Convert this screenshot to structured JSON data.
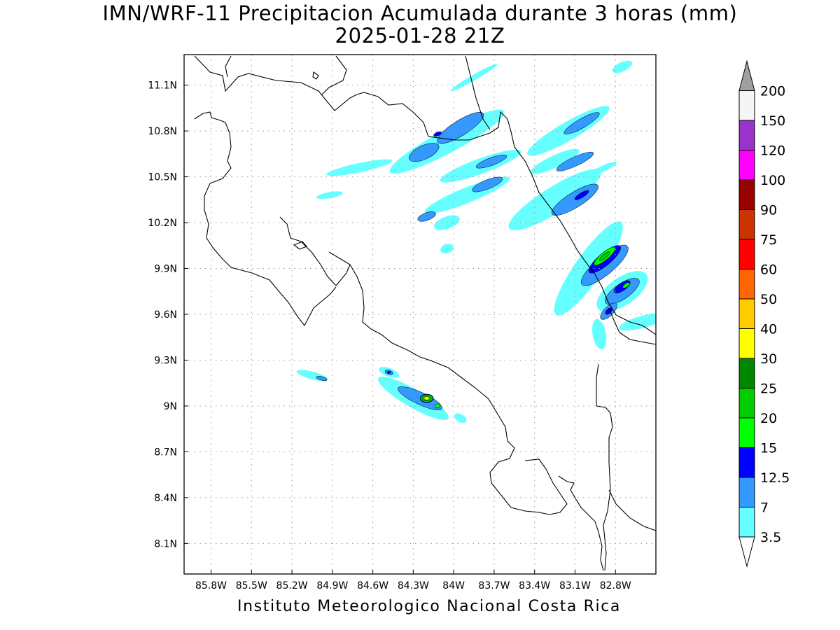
{
  "title": {
    "line1": "IMN/WRF-11 Precipitacion Acumulada durante 3 horas (mm)",
    "line2": "2025-01-28 21Z"
  },
  "footer": "Instituto Meteorologico Nacional Costa Rica",
  "map": {
    "lon_range": [
      -86.0,
      -82.5
    ],
    "lat_range": [
      7.9,
      11.3
    ],
    "lon_ticks": [
      {
        "v": -85.8,
        "label": "85.8W"
      },
      {
        "v": -85.5,
        "label": "85.5W"
      },
      {
        "v": -85.2,
        "label": "85.2W"
      },
      {
        "v": -84.9,
        "label": "84.9W"
      },
      {
        "v": -84.6,
        "label": "84.6W"
      },
      {
        "v": -84.3,
        "label": "84.3W"
      },
      {
        "v": -84.0,
        "label": "84W"
      },
      {
        "v": -83.7,
        "label": "83.7W"
      },
      {
        "v": -83.4,
        "label": "83.4W"
      },
      {
        "v": -83.1,
        "label": "83.1W"
      },
      {
        "v": -82.8,
        "label": "82.8W"
      }
    ],
    "lat_ticks": [
      {
        "v": 11.1,
        "label": "11.1N"
      },
      {
        "v": 10.8,
        "label": "10.8N"
      },
      {
        "v": 10.5,
        "label": "10.5N"
      },
      {
        "v": 10.2,
        "label": "10.2N"
      },
      {
        "v": 9.9,
        "label": "9.9N"
      },
      {
        "v": 9.6,
        "label": "9.6N"
      },
      {
        "v": 9.3,
        "label": "9.3N"
      },
      {
        "v": 9.0,
        "label": "9N"
      },
      {
        "v": 8.7,
        "label": "8.7N"
      },
      {
        "v": 8.4,
        "label": "8.4N"
      },
      {
        "v": 8.1,
        "label": "8.1N"
      }
    ],
    "grid": "dotted"
  },
  "colorbar": {
    "min_arrow_color": "#ffffff",
    "max_arrow_color": "#a0a0a0",
    "bins": [
      {
        "label": "3.5",
        "color": "#66ffff"
      },
      {
        "label": "7",
        "color": "#3399ff"
      },
      {
        "label": "12.5",
        "color": "#0000ff"
      },
      {
        "label": "15",
        "color": "#00ff00"
      },
      {
        "label": "20",
        "color": "#00cc00"
      },
      {
        "label": "25",
        "color": "#008800"
      },
      {
        "label": "30",
        "color": "#ffff00"
      },
      {
        "label": "40",
        "color": "#ffcc00"
      },
      {
        "label": "50",
        "color": "#ff6600"
      },
      {
        "label": "60",
        "color": "#ff0000"
      },
      {
        "label": "75",
        "color": "#cc3300"
      },
      {
        "label": "90",
        "color": "#990000"
      },
      {
        "label": "100",
        "color": "#ff00ff"
      },
      {
        "label": "120",
        "color": "#9933cc"
      },
      {
        "label": "150",
        "color": "#f5f5f5"
      },
      {
        "label": "200",
        "color": ""
      }
    ]
  },
  "precipitation": [
    {
      "lon": -84.05,
      "lat": 10.73,
      "rx": 0.48,
      "ry": 0.075,
      "angle": -28,
      "level": "3.5"
    },
    {
      "lon": -83.95,
      "lat": 10.82,
      "rx": 0.2,
      "ry": 0.05,
      "angle": -32,
      "level": "7"
    },
    {
      "lon": -84.22,
      "lat": 10.66,
      "rx": 0.12,
      "ry": 0.045,
      "angle": -25,
      "level": "7"
    },
    {
      "lon": -84.12,
      "lat": 10.78,
      "rx": 0.03,
      "ry": 0.012,
      "angle": -25,
      "level": "12.5"
    },
    {
      "lon": -84.7,
      "lat": 10.56,
      "rx": 0.25,
      "ry": 0.03,
      "angle": -12,
      "level": "3.5"
    },
    {
      "lon": -84.92,
      "lat": 10.38,
      "rx": 0.1,
      "ry": 0.02,
      "angle": -10,
      "level": "3.5"
    },
    {
      "lon": -83.8,
      "lat": 10.57,
      "rx": 0.32,
      "ry": 0.05,
      "angle": -20,
      "level": "3.5"
    },
    {
      "lon": -83.72,
      "lat": 10.6,
      "rx": 0.12,
      "ry": 0.025,
      "angle": -20,
      "level": "7"
    },
    {
      "lon": -83.9,
      "lat": 10.38,
      "rx": 0.34,
      "ry": 0.05,
      "angle": -22,
      "level": "3.5"
    },
    {
      "lon": -83.75,
      "lat": 10.45,
      "rx": 0.12,
      "ry": 0.03,
      "angle": -22,
      "level": "7"
    },
    {
      "lon": -84.05,
      "lat": 10.2,
      "rx": 0.1,
      "ry": 0.04,
      "angle": -20,
      "level": "3.5"
    },
    {
      "lon": -84.2,
      "lat": 10.24,
      "rx": 0.07,
      "ry": 0.025,
      "angle": -20,
      "level": "7"
    },
    {
      "lon": -83.25,
      "lat": 10.35,
      "rx": 0.4,
      "ry": 0.085,
      "angle": -32,
      "level": "3.5"
    },
    {
      "lon": -83.1,
      "lat": 10.35,
      "rx": 0.2,
      "ry": 0.05,
      "angle": -32,
      "level": "7"
    },
    {
      "lon": -83.05,
      "lat": 10.38,
      "rx": 0.06,
      "ry": 0.015,
      "angle": -32,
      "level": "12.5"
    },
    {
      "lon": -83.15,
      "lat": 10.8,
      "rx": 0.35,
      "ry": 0.06,
      "angle": -30,
      "level": "3.5"
    },
    {
      "lon": -83.05,
      "lat": 10.85,
      "rx": 0.15,
      "ry": 0.03,
      "angle": -30,
      "level": "7"
    },
    {
      "lon": -83.25,
      "lat": 10.6,
      "rx": 0.2,
      "ry": 0.04,
      "angle": -25,
      "level": "3.5"
    },
    {
      "lon": -83.1,
      "lat": 10.6,
      "rx": 0.15,
      "ry": 0.03,
      "angle": -25,
      "level": "7"
    },
    {
      "lon": -82.9,
      "lat": 10.55,
      "rx": 0.12,
      "ry": 0.02,
      "angle": -25,
      "level": "3.5"
    },
    {
      "lon": -83.85,
      "lat": 11.15,
      "rx": 0.2,
      "ry": 0.018,
      "angle": -30,
      "level": "3.5"
    },
    {
      "lon": -82.75,
      "lat": 11.22,
      "rx": 0.08,
      "ry": 0.03,
      "angle": -25,
      "level": "3.5"
    },
    {
      "lon": -84.05,
      "lat": 10.03,
      "rx": 0.05,
      "ry": 0.03,
      "angle": -20,
      "level": "3.5"
    },
    {
      "lon": -83.0,
      "lat": 9.9,
      "rx": 0.42,
      "ry": 0.09,
      "angle": -55,
      "level": "3.5"
    },
    {
      "lon": -82.88,
      "lat": 9.92,
      "rx": 0.22,
      "ry": 0.06,
      "angle": -40,
      "level": "7"
    },
    {
      "lon": -82.88,
      "lat": 9.96,
      "rx": 0.15,
      "ry": 0.04,
      "angle": -40,
      "level": "12.5"
    },
    {
      "lon": -82.88,
      "lat": 9.98,
      "rx": 0.1,
      "ry": 0.025,
      "angle": -40,
      "level": "15"
    },
    {
      "lon": -82.88,
      "lat": 9.98,
      "rx": 0.05,
      "ry": 0.012,
      "angle": -40,
      "level": "20"
    },
    {
      "lon": -82.75,
      "lat": 9.75,
      "rx": 0.22,
      "ry": 0.09,
      "angle": -35,
      "level": "3.5"
    },
    {
      "lon": -82.75,
      "lat": 9.75,
      "rx": 0.15,
      "ry": 0.05,
      "angle": -35,
      "level": "7"
    },
    {
      "lon": -82.75,
      "lat": 9.78,
      "rx": 0.07,
      "ry": 0.025,
      "angle": -35,
      "level": "12.5"
    },
    {
      "lon": -82.72,
      "lat": 9.79,
      "rx": 0.03,
      "ry": 0.012,
      "angle": -35,
      "level": "15"
    },
    {
      "lon": -82.6,
      "lat": 9.55,
      "rx": 0.18,
      "ry": 0.04,
      "angle": -15,
      "level": "3.5"
    },
    {
      "lon": -82.85,
      "lat": 9.62,
      "rx": 0.08,
      "ry": 0.03,
      "angle": -45,
      "level": "7"
    },
    {
      "lon": -82.85,
      "lat": 9.62,
      "rx": 0.03,
      "ry": 0.015,
      "angle": -45,
      "level": "12.5"
    },
    {
      "lon": -82.92,
      "lat": 9.47,
      "rx": 0.05,
      "ry": 0.1,
      "angle": -10,
      "level": "3.5"
    },
    {
      "lon": -84.3,
      "lat": 9.05,
      "rx": 0.3,
      "ry": 0.06,
      "angle": 30,
      "level": "3.5"
    },
    {
      "lon": -84.25,
      "lat": 9.05,
      "rx": 0.18,
      "ry": 0.04,
      "angle": 25,
      "level": "7"
    },
    {
      "lon": -84.2,
      "lat": 9.05,
      "rx": 0.05,
      "ry": 0.028,
      "angle": 0,
      "level": "12.5"
    },
    {
      "lon": -84.2,
      "lat": 9.05,
      "rx": 0.045,
      "ry": 0.024,
      "angle": 0,
      "level": "15"
    },
    {
      "lon": -84.2,
      "lat": 9.05,
      "rx": 0.035,
      "ry": 0.018,
      "angle": 0,
      "level": "20"
    },
    {
      "lon": -84.2,
      "lat": 9.05,
      "rx": 0.02,
      "ry": 0.01,
      "angle": 0,
      "level": "30"
    },
    {
      "lon": -84.12,
      "lat": 9.0,
      "rx": 0.02,
      "ry": 0.014,
      "angle": 0,
      "level": "15"
    },
    {
      "lon": -84.48,
      "lat": 9.22,
      "rx": 0.08,
      "ry": 0.028,
      "angle": 20,
      "level": "3.5"
    },
    {
      "lon": -84.48,
      "lat": 9.22,
      "rx": 0.03,
      "ry": 0.014,
      "angle": 20,
      "level": "7"
    },
    {
      "lon": -84.48,
      "lat": 9.22,
      "rx": 0.014,
      "ry": 0.007,
      "angle": 0,
      "level": "12.5"
    },
    {
      "lon": -85.05,
      "lat": 9.2,
      "rx": 0.12,
      "ry": 0.025,
      "angle": 15,
      "level": "3.5"
    },
    {
      "lon": -84.98,
      "lat": 9.18,
      "rx": 0.04,
      "ry": 0.012,
      "angle": 15,
      "level": "7"
    },
    {
      "lon": -83.95,
      "lat": 8.92,
      "rx": 0.05,
      "ry": 0.025,
      "angle": 30,
      "level": "3.5"
    }
  ]
}
